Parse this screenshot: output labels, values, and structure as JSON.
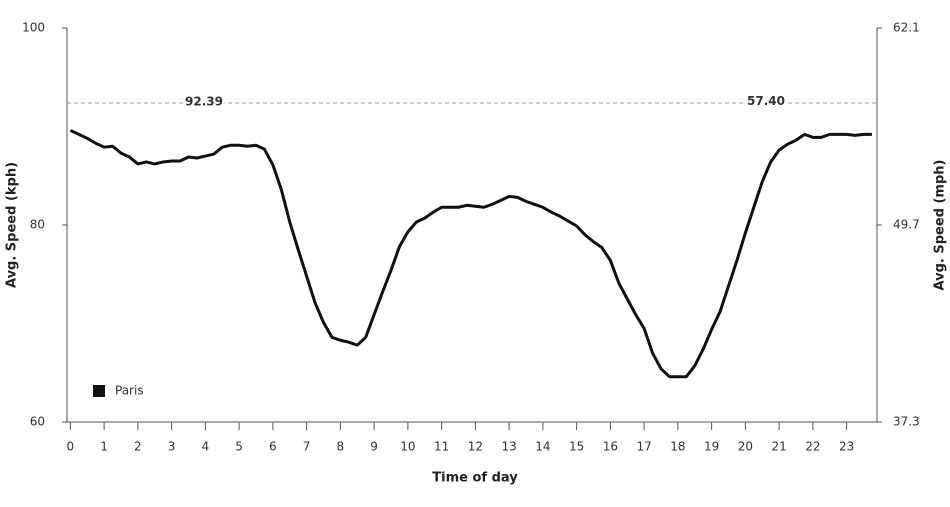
{
  "chart_data": {
    "type": "line",
    "x_label": "Time of day",
    "y_label": "Avg. Speed (kph)",
    "y2_label": "Avg. Speed (mph)",
    "xlim": [
      -0.1,
      23.9
    ],
    "xticks": [
      0,
      1,
      2,
      3,
      4,
      5,
      6,
      7,
      8,
      9,
      10,
      11,
      12,
      13,
      14,
      15,
      16,
      17,
      18,
      19,
      20,
      21,
      22,
      23
    ],
    "ylim": [
      60,
      100
    ],
    "yticks": [
      60,
      80,
      100
    ],
    "y2lim": [
      37.3,
      62.1
    ],
    "y2ticks": [
      37.3,
      49.7,
      62.1
    ],
    "reference_line": {
      "value": 92.39,
      "label": "92.39"
    },
    "reference_line_y2": {
      "value": 57.4,
      "label": "57.40"
    },
    "legend_position": "lower left",
    "x": [
      0,
      0.25,
      0.5,
      0.75,
      1,
      1.25,
      1.5,
      1.75,
      2,
      2.25,
      2.5,
      2.75,
      3,
      3.25,
      3.5,
      3.75,
      4,
      4.25,
      4.5,
      4.75,
      5,
      5.25,
      5.5,
      5.75,
      6,
      6.25,
      6.5,
      6.75,
      7,
      7.25,
      7.5,
      7.75,
      8,
      8.25,
      8.5,
      8.75,
      9,
      9.25,
      9.5,
      9.75,
      10,
      10.25,
      10.5,
      10.75,
      11,
      11.25,
      11.5,
      11.75,
      12,
      12.25,
      12.5,
      12.75,
      13,
      13.25,
      13.5,
      13.75,
      14,
      14.25,
      14.5,
      14.75,
      15,
      15.25,
      15.5,
      15.75,
      16,
      16.25,
      16.5,
      16.75,
      17,
      17.25,
      17.5,
      17.75,
      18,
      18.25,
      18.5,
      18.75,
      19,
      19.25,
      19.5,
      19.75,
      20,
      20.25,
      20.5,
      20.75,
      21,
      21.25,
      21.5,
      21.75,
      22,
      22.25,
      22.5,
      22.75,
      23,
      23.25,
      23.5,
      23.75
    ],
    "series": [
      {
        "name": "Paris",
        "color": "#111111",
        "values": [
          89.6,
          89.2,
          88.8,
          88.3,
          87.9,
          88.0,
          87.3,
          86.9,
          86.2,
          86.4,
          86.2,
          86.4,
          86.5,
          86.5,
          86.9,
          86.8,
          87.0,
          87.2,
          87.9,
          88.1,
          88.1,
          88.0,
          88.1,
          87.7,
          86.1,
          83.6,
          80.3,
          77.5,
          74.8,
          72.1,
          70.1,
          68.6,
          68.3,
          68.1,
          67.8,
          68.6,
          70.9,
          73.2,
          75.4,
          77.8,
          79.3,
          80.3,
          80.7,
          81.3,
          81.8,
          81.8,
          81.8,
          82.0,
          81.9,
          81.8,
          82.1,
          82.5,
          82.9,
          82.8,
          82.4,
          82.1,
          81.8,
          81.3,
          80.9,
          80.4,
          79.9,
          79.0,
          78.3,
          77.7,
          76.4,
          74.1,
          72.5,
          70.9,
          69.5,
          67.0,
          65.4,
          64.6,
          64.6,
          64.6,
          65.7,
          67.4,
          69.4,
          71.2,
          73.8,
          76.4,
          79.2,
          81.8,
          84.4,
          86.4,
          87.6,
          88.2,
          88.6,
          89.2,
          88.9,
          88.9,
          89.2,
          89.2,
          89.2,
          89.1,
          89.2,
          89.2
        ]
      }
    ]
  }
}
